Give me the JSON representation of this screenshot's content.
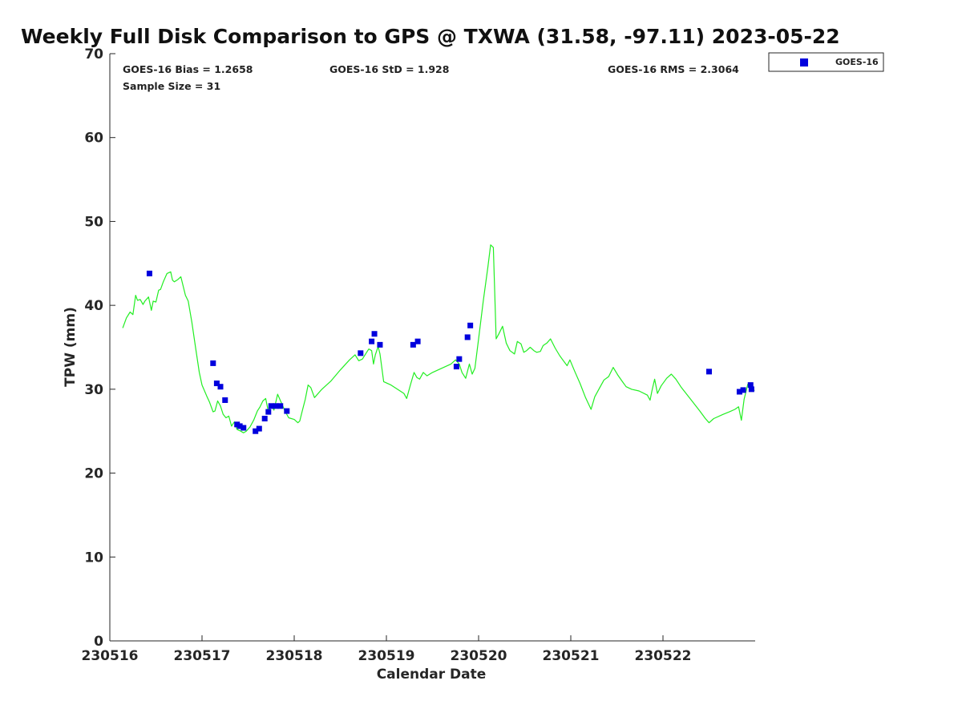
{
  "chart_data": {
    "type": "scatter",
    "title": "Weekly Full Disk Comparison to GPS @ TXWA (31.58, -97.11) 2023-05-22",
    "xlabel": "Calendar Date",
    "ylabel": "TPW (mm)",
    "xlim": [
      0,
      7
    ],
    "ylim": [
      0,
      70
    ],
    "x_ticks": [
      {
        "value": 0,
        "label": "230516"
      },
      {
        "value": 1,
        "label": "230517"
      },
      {
        "value": 2,
        "label": "230518"
      },
      {
        "value": 3,
        "label": "230519"
      },
      {
        "value": 4,
        "label": "230520"
      },
      {
        "value": 5,
        "label": "230521"
      },
      {
        "value": 6,
        "label": "230522"
      }
    ],
    "y_ticks": [
      0,
      10,
      20,
      30,
      40,
      50,
      60,
      70
    ],
    "grid": false,
    "legend_position": "top-right",
    "stats": {
      "bias": "GOES-16 Bias = 1.2658",
      "std": "GOES-16 StD = 1.928",
      "rms": "GOES-16 RMS = 2.3064",
      "sample": "Sample Size = 31"
    },
    "series": [
      {
        "name": "GOES-16",
        "kind": "scatter",
        "color": "#0000dd",
        "points": [
          [
            0.43,
            43.8
          ],
          [
            1.12,
            33.1
          ],
          [
            1.16,
            30.7
          ],
          [
            1.2,
            30.3
          ],
          [
            1.25,
            28.7
          ],
          [
            1.38,
            25.8
          ],
          [
            1.41,
            25.6
          ],
          [
            1.45,
            25.4
          ],
          [
            1.58,
            25.0
          ],
          [
            1.62,
            25.3
          ],
          [
            1.68,
            26.5
          ],
          [
            1.72,
            27.3
          ],
          [
            1.75,
            28.0
          ],
          [
            1.8,
            28.0
          ],
          [
            1.85,
            28.0
          ],
          [
            1.92,
            27.4
          ],
          [
            2.72,
            34.3
          ],
          [
            2.84,
            35.7
          ],
          [
            2.87,
            36.6
          ],
          [
            2.93,
            35.3
          ],
          [
            3.29,
            35.3
          ],
          [
            3.34,
            35.7
          ],
          [
            3.76,
            32.7
          ],
          [
            3.79,
            33.6
          ],
          [
            3.88,
            36.2
          ],
          [
            3.91,
            37.6
          ],
          [
            6.5,
            32.1
          ],
          [
            6.83,
            29.7
          ],
          [
            6.87,
            29.9
          ],
          [
            6.95,
            30.5
          ],
          [
            6.96,
            30.0
          ]
        ]
      },
      {
        "kind": "line",
        "color": "#22ee22",
        "points": [
          [
            0.14,
            37.3
          ],
          [
            0.18,
            38.5
          ],
          [
            0.22,
            39.2
          ],
          [
            0.25,
            38.9
          ],
          [
            0.28,
            41.2
          ],
          [
            0.3,
            40.6
          ],
          [
            0.33,
            40.7
          ],
          [
            0.36,
            40.1
          ],
          [
            0.38,
            40.5
          ],
          [
            0.42,
            41.0
          ],
          [
            0.45,
            39.4
          ],
          [
            0.47,
            40.5
          ],
          [
            0.5,
            40.4
          ],
          [
            0.53,
            41.8
          ],
          [
            0.55,
            41.9
          ],
          [
            0.58,
            42.8
          ],
          [
            0.62,
            43.8
          ],
          [
            0.66,
            44.0
          ],
          [
            0.68,
            43.0
          ],
          [
            0.7,
            42.8
          ],
          [
            0.74,
            43.1
          ],
          [
            0.77,
            43.4
          ],
          [
            0.82,
            41.2
          ],
          [
            0.85,
            40.5
          ],
          [
            0.89,
            38.0
          ],
          [
            0.93,
            35.0
          ],
          [
            0.97,
            32.0
          ],
          [
            1.0,
            30.5
          ],
          [
            1.05,
            29.2
          ],
          [
            1.08,
            28.5
          ],
          [
            1.12,
            27.3
          ],
          [
            1.14,
            27.4
          ],
          [
            1.17,
            28.6
          ],
          [
            1.2,
            28.0
          ],
          [
            1.23,
            27.0
          ],
          [
            1.26,
            26.6
          ],
          [
            1.29,
            26.8
          ],
          [
            1.32,
            25.6
          ],
          [
            1.35,
            26.1
          ],
          [
            1.38,
            25.2
          ],
          [
            1.42,
            25.0
          ],
          [
            1.45,
            24.8
          ],
          [
            1.48,
            25.0
          ],
          [
            1.52,
            25.5
          ],
          [
            1.56,
            26.3
          ],
          [
            1.6,
            27.4
          ],
          [
            1.63,
            27.9
          ],
          [
            1.66,
            28.6
          ],
          [
            1.69,
            28.9
          ],
          [
            1.72,
            27.3
          ],
          [
            1.75,
            28.2
          ],
          [
            1.78,
            27.5
          ],
          [
            1.82,
            29.4
          ],
          [
            1.84,
            28.9
          ],
          [
            1.86,
            28.4
          ],
          [
            1.9,
            27.4
          ],
          [
            1.94,
            26.6
          ],
          [
            2.0,
            26.4
          ],
          [
            2.04,
            26.0
          ],
          [
            2.06,
            26.2
          ],
          [
            2.09,
            27.5
          ],
          [
            2.12,
            28.8
          ],
          [
            2.15,
            30.5
          ],
          [
            2.18,
            30.2
          ],
          [
            2.22,
            29.0
          ],
          [
            2.3,
            30.0
          ],
          [
            2.4,
            31.0
          ],
          [
            2.5,
            32.3
          ],
          [
            2.6,
            33.5
          ],
          [
            2.66,
            34.1
          ],
          [
            2.7,
            33.4
          ],
          [
            2.74,
            33.6
          ],
          [
            2.78,
            34.3
          ],
          [
            2.81,
            34.8
          ],
          [
            2.84,
            34.6
          ],
          [
            2.86,
            33.0
          ],
          [
            2.88,
            34.1
          ],
          [
            2.91,
            35.1
          ],
          [
            2.93,
            34.2
          ],
          [
            2.97,
            30.9
          ],
          [
            3.05,
            30.5
          ],
          [
            3.12,
            30.0
          ],
          [
            3.19,
            29.5
          ],
          [
            3.22,
            28.9
          ],
          [
            3.26,
            30.5
          ],
          [
            3.3,
            32.0
          ],
          [
            3.33,
            31.4
          ],
          [
            3.36,
            31.2
          ],
          [
            3.4,
            32.0
          ],
          [
            3.44,
            31.6
          ],
          [
            3.5,
            32.0
          ],
          [
            3.6,
            32.5
          ],
          [
            3.7,
            33.0
          ],
          [
            3.75,
            33.5
          ],
          [
            3.79,
            33.0
          ],
          [
            3.82,
            32.0
          ],
          [
            3.86,
            31.3
          ],
          [
            3.9,
            33.0
          ],
          [
            3.93,
            31.8
          ],
          [
            3.96,
            32.5
          ],
          [
            4.0,
            36.0
          ],
          [
            4.05,
            40.5
          ],
          [
            4.1,
            44.5
          ],
          [
            4.13,
            47.2
          ],
          [
            4.16,
            46.9
          ],
          [
            4.19,
            36.0
          ],
          [
            4.22,
            36.6
          ],
          [
            4.26,
            37.5
          ],
          [
            4.3,
            35.5
          ],
          [
            4.34,
            34.6
          ],
          [
            4.39,
            34.2
          ],
          [
            4.42,
            35.7
          ],
          [
            4.46,
            35.4
          ],
          [
            4.49,
            34.4
          ],
          [
            4.52,
            34.6
          ],
          [
            4.56,
            35.0
          ],
          [
            4.6,
            34.6
          ],
          [
            4.63,
            34.4
          ],
          [
            4.67,
            34.5
          ],
          [
            4.7,
            35.2
          ],
          [
            4.74,
            35.5
          ],
          [
            4.78,
            36.0
          ],
          [
            4.83,
            34.9
          ],
          [
            4.88,
            34.0
          ],
          [
            4.92,
            33.4
          ],
          [
            4.96,
            32.8
          ],
          [
            4.99,
            33.5
          ],
          [
            5.04,
            32.2
          ],
          [
            5.1,
            30.7
          ],
          [
            5.16,
            29.0
          ],
          [
            5.22,
            27.6
          ],
          [
            5.26,
            29.1
          ],
          [
            5.31,
            30.1
          ],
          [
            5.36,
            31.1
          ],
          [
            5.41,
            31.5
          ],
          [
            5.46,
            32.6
          ],
          [
            5.51,
            31.7
          ],
          [
            5.56,
            30.9
          ],
          [
            5.6,
            30.3
          ],
          [
            5.66,
            30.0
          ],
          [
            5.74,
            29.8
          ],
          [
            5.83,
            29.3
          ],
          [
            5.86,
            28.7
          ],
          [
            5.88,
            29.8
          ],
          [
            5.91,
            31.2
          ],
          [
            5.94,
            29.5
          ],
          [
            5.98,
            30.4
          ],
          [
            6.04,
            31.3
          ],
          [
            6.09,
            31.8
          ],
          [
            6.14,
            31.2
          ],
          [
            6.2,
            30.2
          ],
          [
            6.3,
            28.8
          ],
          [
            6.4,
            27.4
          ],
          [
            6.46,
            26.5
          ],
          [
            6.5,
            26.0
          ],
          [
            6.55,
            26.5
          ],
          [
            6.65,
            27.0
          ],
          [
            6.72,
            27.3
          ],
          [
            6.78,
            27.6
          ],
          [
            6.82,
            27.9
          ],
          [
            6.85,
            26.3
          ],
          [
            6.88,
            28.8
          ],
          [
            6.92,
            30.6
          ],
          [
            6.95,
            30.3
          ],
          [
            6.97,
            30.3
          ],
          [
            6.98,
            30.1
          ],
          [
            6.99,
            29.8
          ]
        ]
      }
    ]
  }
}
